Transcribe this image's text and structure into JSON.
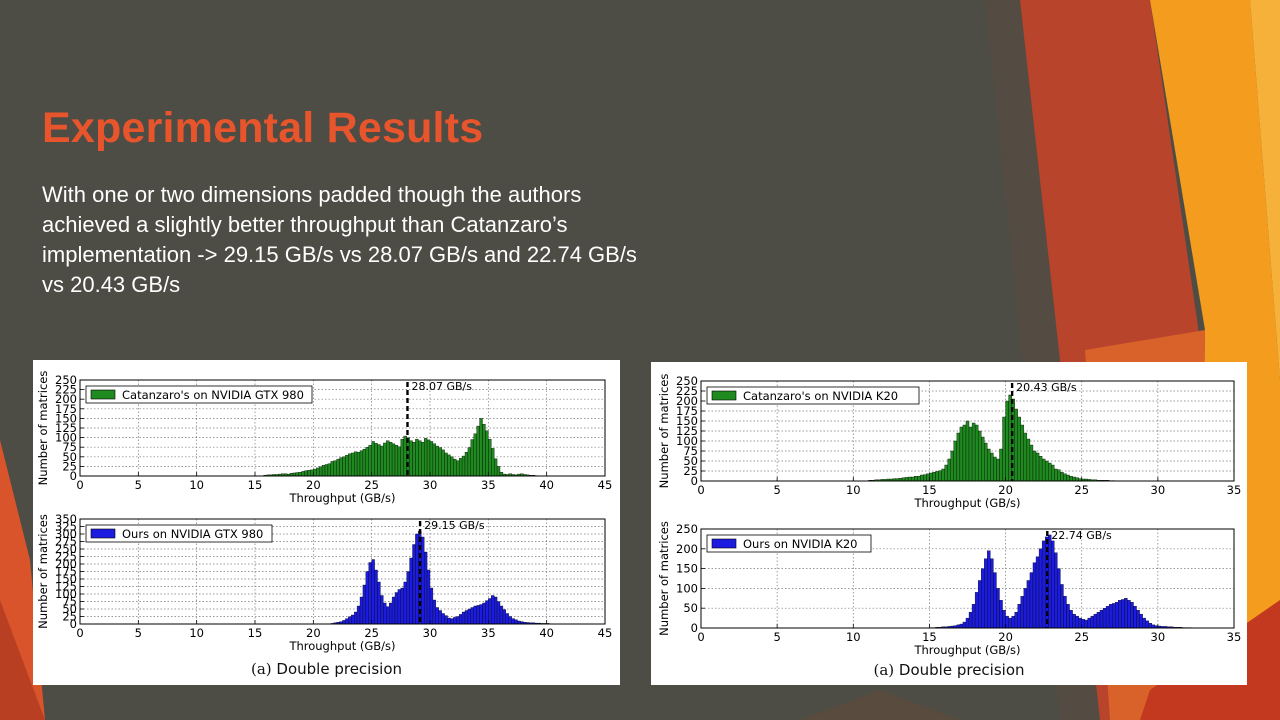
{
  "slide": {
    "title": "Experimental Results",
    "body": "With one or two dimensions padded though the authors achieved a slightly better throughput than Catanzaro’s implementation -> 29.15 GB/s vs 28.07 GB/s and 22.74 GB/s vs 20.43 GB/s",
    "colors": {
      "background": "#4d4d45",
      "title": "#e8552c",
      "accent_orange": "#f39c1e",
      "accent_red": "#c0392b"
    }
  },
  "figures": [
    {
      "caption_label": "(a)",
      "caption_text": "Double precision"
    },
    {
      "caption_label": "(a)",
      "caption_text": "Double precision"
    }
  ],
  "chart_data": [
    {
      "type": "bar",
      "legend": "Catanzaro's on NVIDIA GTX 980",
      "color": "#1f8a1f",
      "xlabel": "Throughput (GB/s)",
      "ylabel": "Number of matrices",
      "xlim": [
        0,
        45
      ],
      "ylim": [
        0,
        250
      ],
      "xticks": [
        "0",
        "5",
        "10",
        "15",
        "20",
        "25",
        "30",
        "35",
        "40",
        "45"
      ],
      "yticks": [
        "0",
        "25",
        "50",
        "75",
        "100",
        "125",
        "150",
        "175",
        "200",
        "225",
        "250"
      ],
      "grid": true,
      "annotation": {
        "x": 28.07,
        "label": "28.07 GB/s"
      },
      "bin_width": 0.25,
      "x": [
        15.75,
        16.0,
        16.25,
        16.5,
        16.75,
        17.0,
        17.25,
        17.5,
        17.75,
        18.0,
        18.25,
        18.5,
        18.75,
        19.0,
        19.25,
        19.5,
        19.75,
        20.0,
        20.25,
        20.5,
        20.75,
        21.0,
        21.25,
        21.5,
        21.75,
        22.0,
        22.25,
        22.5,
        22.75,
        23.0,
        23.25,
        23.5,
        23.75,
        24.0,
        24.25,
        24.5,
        24.75,
        25.0,
        25.25,
        25.5,
        25.75,
        26.0,
        26.25,
        26.5,
        26.75,
        27.0,
        27.25,
        27.5,
        27.75,
        28.0,
        28.25,
        28.5,
        28.75,
        29.0,
        29.25,
        29.5,
        29.75,
        30.0,
        30.25,
        30.5,
        30.75,
        31.0,
        31.25,
        31.5,
        31.75,
        32.0,
        32.25,
        32.5,
        32.75,
        33.0,
        33.25,
        33.5,
        33.75,
        34.0,
        34.25,
        34.5,
        34.75,
        35.0,
        35.25,
        35.5,
        35.75,
        36.0,
        36.25,
        36.5,
        36.75,
        37.0,
        37.25,
        37.5,
        37.75,
        38.0,
        38.25,
        38.5,
        38.75,
        39.0
      ],
      "values": [
        2,
        3,
        3,
        4,
        4,
        5,
        6,
        6,
        5,
        7,
        8,
        9,
        10,
        12,
        14,
        15,
        16,
        18,
        21,
        24,
        28,
        30,
        32,
        38,
        40,
        44,
        48,
        50,
        54,
        58,
        60,
        63,
        62,
        66,
        70,
        75,
        80,
        90,
        85,
        82,
        78,
        86,
        92,
        88,
        84,
        80,
        76,
        96,
        104,
        100,
        92,
        88,
        96,
        92,
        88,
        98,
        94,
        90,
        84,
        78,
        74,
        68,
        60,
        55,
        50,
        44,
        40,
        46,
        52,
        62,
        74,
        95,
        110,
        130,
        150,
        135,
        118,
        96,
        72,
        45,
        25,
        10,
        5,
        4,
        6,
        4,
        3,
        5,
        6,
        4,
        3,
        2,
        2,
        1
      ]
    },
    {
      "type": "bar",
      "legend": "Ours on NVIDIA GTX 980",
      "color": "#1c1ce0",
      "xlabel": "Throughput (GB/s)",
      "ylabel": "Number of matrices",
      "xlim": [
        0,
        45
      ],
      "ylim": [
        0,
        350
      ],
      "xticks": [
        "0",
        "5",
        "10",
        "15",
        "20",
        "25",
        "30",
        "35",
        "40",
        "45"
      ],
      "yticks": [
        "0",
        "25",
        "50",
        "75",
        "100",
        "125",
        "150",
        "175",
        "200",
        "225",
        "250",
        "275",
        "300",
        "325",
        "350"
      ],
      "grid": true,
      "annotation": {
        "x": 29.15,
        "label": "29.15 GB/s"
      },
      "bin_width": 0.25,
      "x": [
        21.5,
        21.75,
        22.0,
        22.25,
        22.5,
        22.75,
        23.0,
        23.25,
        23.5,
        23.75,
        24.0,
        24.25,
        24.5,
        24.75,
        25.0,
        25.25,
        25.5,
        25.75,
        26.0,
        26.25,
        26.5,
        26.75,
        27.0,
        27.25,
        27.5,
        27.75,
        28.0,
        28.25,
        28.5,
        28.75,
        29.0,
        29.25,
        29.5,
        29.75,
        30.0,
        30.25,
        30.5,
        30.75,
        31.0,
        31.25,
        31.5,
        31.75,
        32.0,
        32.25,
        32.5,
        32.75,
        33.0,
        33.25,
        33.5,
        33.75,
        34.0,
        34.25,
        34.5,
        34.75,
        35.0,
        35.25,
        35.5,
        35.75,
        36.0,
        36.25,
        36.5,
        36.75,
        37.0,
        37.25,
        37.5,
        37.75,
        38.0,
        38.25,
        38.5,
        38.75,
        39.0,
        39.25,
        39.5,
        39.75,
        40.0,
        40.25,
        40.5
      ],
      "values": [
        2,
        4,
        6,
        8,
        12,
        18,
        24,
        30,
        40,
        60,
        90,
        130,
        175,
        205,
        215,
        180,
        140,
        95,
        70,
        58,
        70,
        90,
        105,
        115,
        120,
        140,
        175,
        220,
        265,
        300,
        310,
        290,
        240,
        180,
        120,
        80,
        55,
        45,
        35,
        28,
        20,
        18,
        22,
        25,
        32,
        40,
        45,
        50,
        55,
        60,
        62,
        65,
        70,
        78,
        85,
        95,
        90,
        75,
        60,
        48,
        35,
        25,
        18,
        14,
        10,
        8,
        6,
        5,
        4,
        4,
        3,
        3,
        2,
        2,
        2,
        1,
        1
      ]
    },
    {
      "type": "bar",
      "legend": "Catanzaro's on NVIDIA K20",
      "color": "#1f8a1f",
      "xlabel": "Throughput (GB/s)",
      "ylabel": "Number of matrices",
      "xlim": [
        0,
        35
      ],
      "ylim": [
        0,
        250
      ],
      "xticks": [
        "0",
        "5",
        "10",
        "15",
        "20",
        "25",
        "30",
        "35"
      ],
      "yticks": [
        "0",
        "25",
        "50",
        "75",
        "100",
        "125",
        "150",
        "175",
        "200",
        "225",
        "250"
      ],
      "grid": true,
      "annotation": {
        "x": 20.43,
        "label": "20.43 GB/s"
      },
      "bin_width": 0.2,
      "x": [
        11.0,
        11.2,
        11.4,
        11.6,
        11.8,
        12.0,
        12.2,
        12.4,
        12.6,
        12.8,
        13.0,
        13.2,
        13.4,
        13.6,
        13.8,
        14.0,
        14.2,
        14.4,
        14.6,
        14.8,
        15.0,
        15.2,
        15.4,
        15.6,
        15.8,
        16.0,
        16.2,
        16.4,
        16.6,
        16.8,
        17.0,
        17.2,
        17.4,
        17.6,
        17.8,
        18.0,
        18.2,
        18.4,
        18.6,
        18.8,
        19.0,
        19.2,
        19.4,
        19.6,
        19.8,
        20.0,
        20.2,
        20.4,
        20.6,
        20.8,
        21.0,
        21.2,
        21.4,
        21.6,
        21.8,
        22.0,
        22.2,
        22.4,
        22.6,
        22.8,
        23.0,
        23.2,
        23.4,
        23.6,
        23.8,
        24.0,
        24.2,
        24.4,
        24.6,
        24.8,
        25.0,
        25.2,
        25.4,
        25.6,
        25.8,
        26.0,
        26.2,
        26.4,
        26.6,
        26.8,
        27.0
      ],
      "values": [
        2,
        2,
        3,
        3,
        4,
        4,
        5,
        5,
        6,
        6,
        7,
        8,
        9,
        10,
        10,
        12,
        12,
        15,
        16,
        18,
        20,
        22,
        24,
        26,
        30,
        40,
        55,
        75,
        100,
        120,
        135,
        140,
        150,
        135,
        145,
        140,
        125,
        110,
        95,
        80,
        70,
        60,
        55,
        80,
        160,
        200,
        215,
        205,
        180,
        160,
        140,
        120,
        105,
        90,
        75,
        70,
        62,
        55,
        50,
        45,
        40,
        30,
        28,
        22,
        18,
        15,
        12,
        10,
        8,
        6,
        5,
        5,
        4,
        3,
        3,
        2,
        2,
        2,
        2,
        1,
        1
      ]
    },
    {
      "type": "bar",
      "legend": "Ours on NVIDIA K20",
      "color": "#1c1ce0",
      "xlabel": "Throughput (GB/s)",
      "ylabel": "Number of matrices",
      "xlim": [
        0,
        35
      ],
      "ylim": [
        0,
        250
      ],
      "xticks": [
        "0",
        "5",
        "10",
        "15",
        "20",
        "25",
        "30",
        "35"
      ],
      "yticks": [
        "0",
        "50",
        "100",
        "150",
        "200",
        "250"
      ],
      "grid": true,
      "annotation": {
        "x": 22.74,
        "label": "22.74 GB/s"
      },
      "bin_width": 0.2,
      "x": [
        15.0,
        15.2,
        15.4,
        15.6,
        15.8,
        16.0,
        16.2,
        16.4,
        16.6,
        16.8,
        17.0,
        17.2,
        17.4,
        17.6,
        17.8,
        18.0,
        18.2,
        18.4,
        18.6,
        18.8,
        19.0,
        19.2,
        19.4,
        19.6,
        19.8,
        20.0,
        20.2,
        20.4,
        20.6,
        20.8,
        21.0,
        21.2,
        21.4,
        21.6,
        21.8,
        22.0,
        22.2,
        22.4,
        22.6,
        22.8,
        23.0,
        23.2,
        23.4,
        23.6,
        23.8,
        24.0,
        24.2,
        24.4,
        24.6,
        24.8,
        25.0,
        25.2,
        25.4,
        25.6,
        25.8,
        26.0,
        26.2,
        26.4,
        26.6,
        26.8,
        27.0,
        27.2,
        27.4,
        27.6,
        27.8,
        28.0,
        28.2,
        28.4,
        28.6,
        28.8,
        29.0,
        29.2,
        29.4,
        29.6,
        29.8,
        30.0,
        30.2,
        30.4,
        30.6,
        30.8,
        31.0,
        31.2,
        31.4,
        31.6,
        31.8,
        32.0
      ],
      "values": [
        1,
        1,
        2,
        2,
        3,
        3,
        4,
        5,
        6,
        8,
        10,
        15,
        25,
        40,
        60,
        90,
        120,
        150,
        175,
        195,
        175,
        140,
        100,
        70,
        45,
        30,
        25,
        30,
        40,
        60,
        80,
        100,
        120,
        140,
        165,
        180,
        200,
        220,
        230,
        235,
        220,
        190,
        150,
        110,
        80,
        60,
        45,
        35,
        30,
        25,
        22,
        20,
        25,
        30,
        35,
        40,
        45,
        50,
        55,
        60,
        62,
        65,
        70,
        72,
        75,
        70,
        65,
        55,
        45,
        35,
        25,
        18,
        12,
        8,
        6,
        5,
        4,
        4,
        3,
        3,
        2,
        2,
        2,
        1,
        1,
        1
      ]
    }
  ]
}
